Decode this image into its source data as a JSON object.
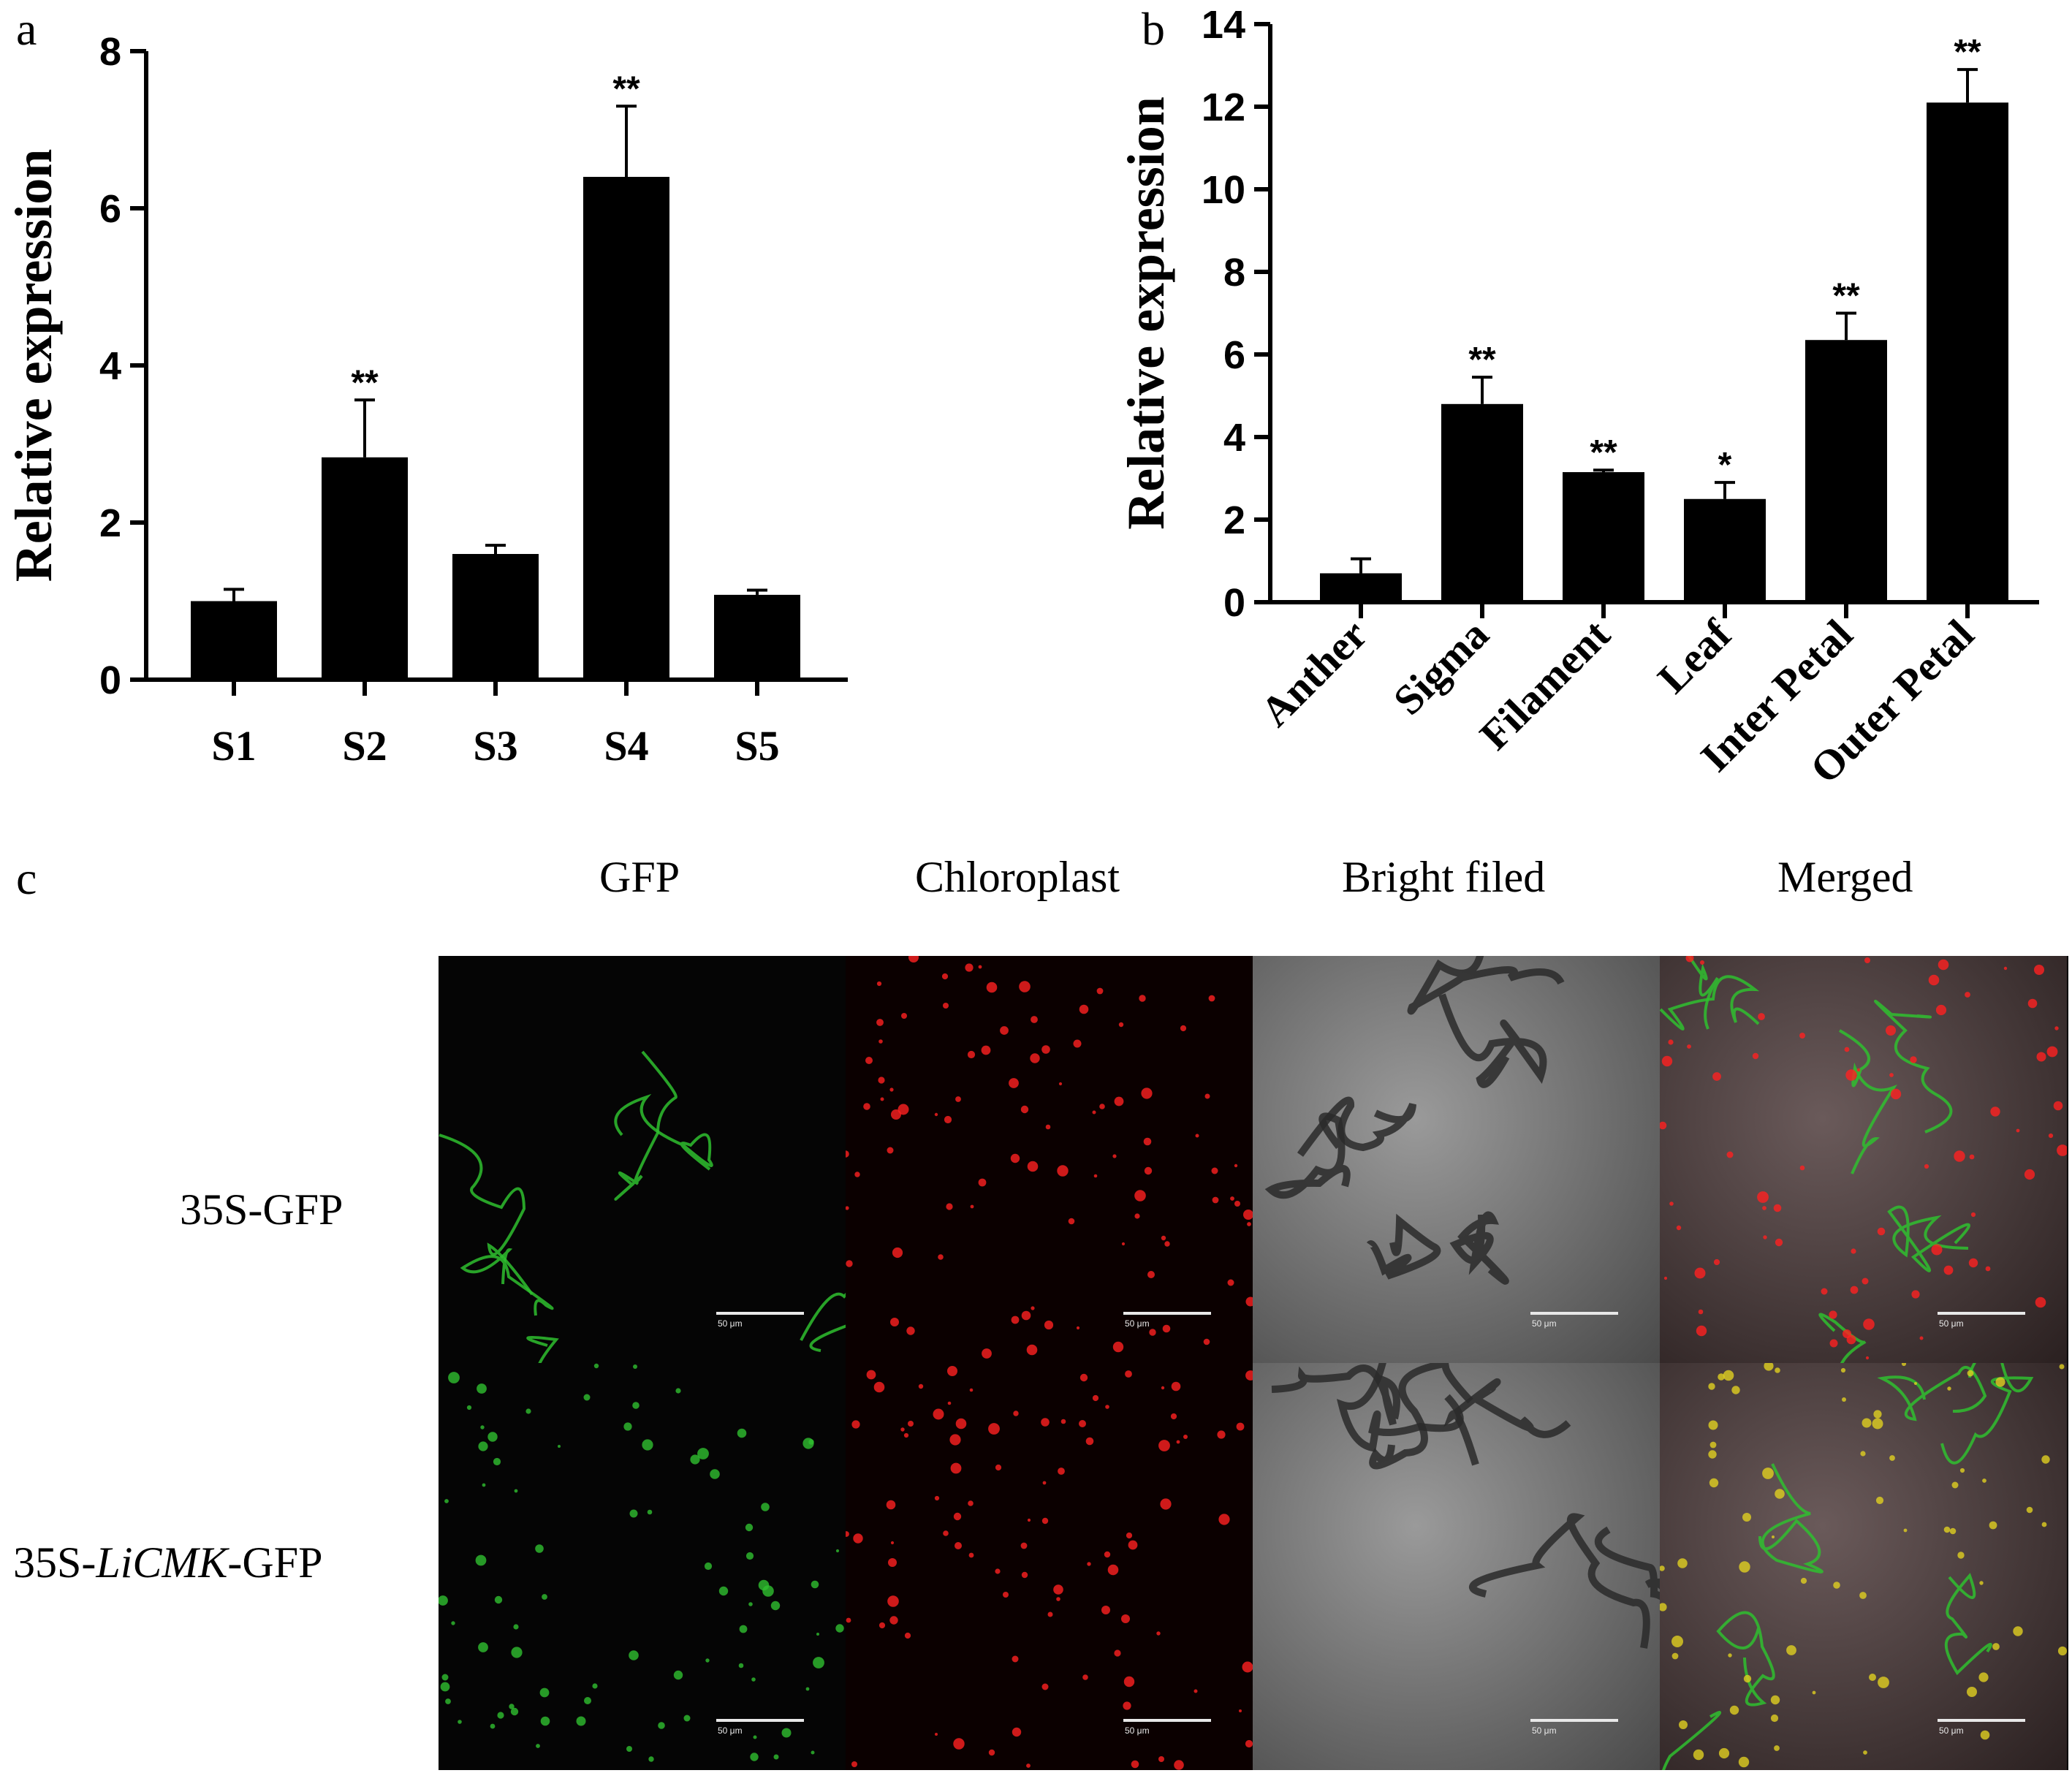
{
  "panels": {
    "a": "a",
    "b": "b",
    "c": "c"
  },
  "chart_data": [
    {
      "type": "bar",
      "panel": "a",
      "ylabel": "Relative expression",
      "ylim": [
        0,
        8
      ],
      "yticks": [
        0,
        2,
        4,
        6,
        8
      ],
      "categories": [
        "S1",
        "S2",
        "S3",
        "S4",
        "S5"
      ],
      "values": [
        1.0,
        2.83,
        1.6,
        6.4,
        1.08
      ],
      "errors": [
        0.15,
        0.73,
        0.11,
        0.9,
        0.06
      ],
      "significance": [
        "",
        "**",
        "",
        "**",
        ""
      ],
      "bar_color": "#000000"
    },
    {
      "type": "bar",
      "panel": "b",
      "ylabel": "Relative expression",
      "ylim": [
        0,
        14
      ],
      "yticks": [
        0,
        2,
        4,
        6,
        8,
        10,
        12,
        14
      ],
      "categories": [
        "Anther",
        "Sigma",
        "Filament",
        "Leaf",
        "Inter Petal",
        "Outer Petal"
      ],
      "values": [
        0.7,
        4.8,
        3.15,
        2.5,
        6.35,
        12.1
      ],
      "errors": [
        0.35,
        0.65,
        0.05,
        0.4,
        0.65,
        0.8
      ],
      "significance": [
        "",
        "**",
        "**",
        "*",
        "**",
        "**"
      ],
      "bar_color": "#000000"
    }
  ],
  "micrograph": {
    "columns": [
      "GFP",
      "Chloroplast",
      "Bright filed",
      "Merged"
    ],
    "rows": [
      {
        "prefix": "35S-",
        "italic": "",
        "suffix": "GFP"
      },
      {
        "prefix": "35S-",
        "italic": "LiCMK",
        "suffix": "-GFP"
      }
    ],
    "scale_label": "50 μm",
    "channel_colors": {
      "gfp": "#2fbf2f",
      "chloroplast": "#ff2020",
      "bright": "#7a7a7a",
      "merged_yellow": "#e0d020"
    }
  }
}
